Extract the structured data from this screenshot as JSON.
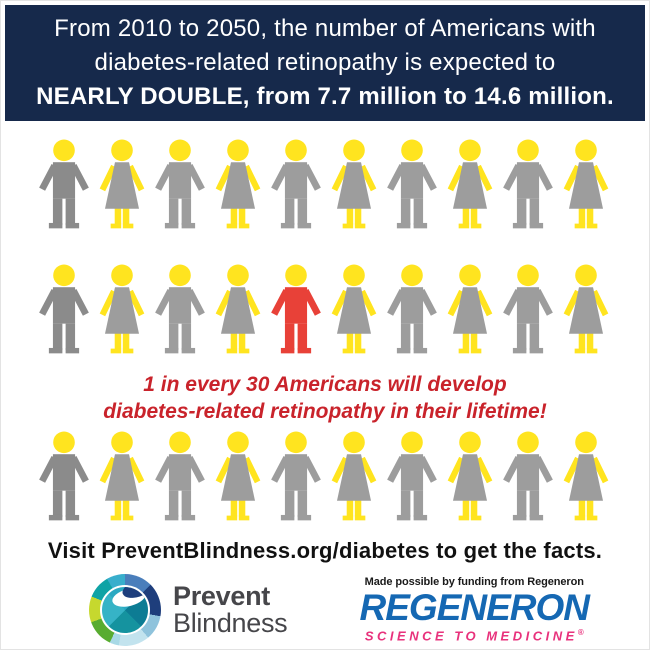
{
  "header": {
    "line1": "From 2010 to 2050, the number of Americans with",
    "line2": "diabetes-related retinopathy is expected to",
    "line3": "NEARLY DOUBLE, from 7.7 million to 14.6 million.",
    "bg_color": "#16294b",
    "text_color": "#ffffff"
  },
  "figures": {
    "rows": [
      [
        "male-dark",
        "female",
        "male",
        "female",
        "male",
        "female",
        "male",
        "female",
        "male",
        "female"
      ],
      [
        "male-dark",
        "female",
        "male",
        "female",
        "male-highlight",
        "female",
        "male",
        "female",
        "male",
        "female"
      ],
      [
        "male-dark",
        "female",
        "male",
        "female",
        "male",
        "female",
        "male",
        "female",
        "male",
        "female"
      ]
    ],
    "colors": {
      "head": "#ffe41f",
      "gray": "#9d9d9d",
      "gray_dark": "#8b8b8b",
      "highlight": "#e84138"
    },
    "highlight_meaning": "1 highlighted person out of 30"
  },
  "tagline": {
    "line1": "1 in every 30 Americans will develop",
    "line2": "diabetes-related retinopathy in their lifetime!",
    "color": "#c9232b"
  },
  "cta": {
    "text": "Visit PreventBlindness.org/diabetes to get the facts."
  },
  "footer": {
    "prevent_blindness": {
      "name_line1": "Prevent",
      "name_line2": "Blindness"
    },
    "regeneron": {
      "funding_note": "Made possible by funding from Regeneron",
      "wordmark": "REGENERON",
      "tagline": "SCIENCE TO MEDICINE",
      "registered": "®",
      "blue": "#1568b3",
      "magenta": "#e8327c"
    }
  }
}
